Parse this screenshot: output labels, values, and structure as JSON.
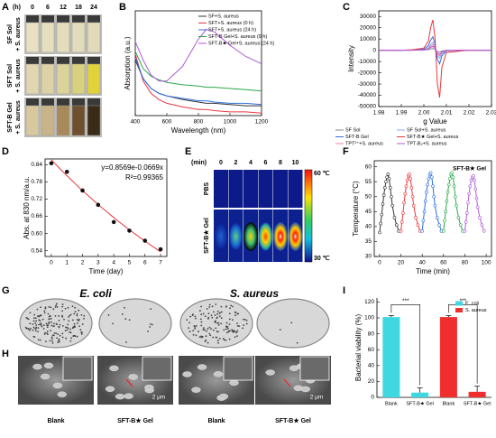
{
  "panel_labels": [
    "A",
    "B",
    "C",
    "D",
    "E",
    "F",
    "G",
    "H",
    "I"
  ],
  "panel_a": {
    "time_unit": "(h)",
    "times": [
      0,
      6,
      12,
      18,
      24
    ],
    "rows": [
      [
        "SF Sol",
        "+ S. aureus"
      ],
      [
        "SFT Sol",
        "+ S. aureus"
      ],
      [
        "SFT-B Gel",
        "+ S. aureus"
      ]
    ]
  },
  "panel_e": {
    "time_unit": "(min)",
    "times": [
      0,
      2,
      4,
      6,
      8,
      10
    ],
    "rows": [
      "PBS",
      "SFT-B★ Gel"
    ],
    "colorbar": [
      "60 ℃",
      "30 ℃"
    ]
  },
  "panel_g": {
    "columns": [
      "E. coli",
      "S. aureus"
    ]
  },
  "panel_h": {
    "labels": [
      "Blank",
      "SFT-B★ Gel",
      "Blank",
      "SFT-B★ Gel"
    ],
    "scale_bars": [
      "2 μm",
      "2 μm"
    ]
  },
  "chart_data": [
    {
      "type": "line",
      "xlabel": "Wavelength (nm)",
      "ylabel": "Absorption (a.u.)",
      "xlim": [
        400,
        1200
      ],
      "xticks": [
        400,
        600,
        800,
        1000,
        1200
      ],
      "ylim": [
        0,
        0.85
      ],
      "legend": "upper right",
      "x": [
        400,
        450,
        500,
        550,
        600,
        700,
        800,
        850,
        900,
        1000,
        1100,
        1200
      ],
      "series": [
        {
          "name": "SF+S. aureus",
          "color": "#333333",
          "values": [
            0.45,
            0.3,
            0.22,
            0.18,
            0.16,
            0.13,
            0.11,
            0.1,
            0.1,
            0.09,
            0.08,
            0.08
          ]
        },
        {
          "name": "SFT+S. aureus (0 h)",
          "color": "#e8383d",
          "values": [
            0.5,
            0.28,
            0.18,
            0.13,
            0.1,
            0.07,
            0.05,
            0.05,
            0.04,
            0.03,
            0.03,
            0.02
          ]
        },
        {
          "name": "SFT+S. aureus (24 h)",
          "color": "#2f6fe0",
          "values": [
            0.47,
            0.3,
            0.22,
            0.18,
            0.16,
            0.14,
            0.12,
            0.12,
            0.11,
            0.1,
            0.1,
            0.09
          ]
        },
        {
          "name": "SFT-B Gel+S. aureus (0 h)",
          "color": "#2aa84a",
          "values": [
            0.52,
            0.38,
            0.32,
            0.29,
            0.27,
            0.25,
            0.24,
            0.23,
            0.23,
            0.22,
            0.21,
            0.2
          ]
        },
        {
          "name": "SFT-B★ Gel+S. aureus (24 h)",
          "color": "#b05ad6",
          "values": [
            0.6,
            0.45,
            0.33,
            0.28,
            0.28,
            0.4,
            0.62,
            0.7,
            0.68,
            0.57,
            0.48,
            0.42
          ]
        }
      ]
    },
    {
      "type": "line",
      "xlabel": "g Value",
      "ylabel": "Intensity",
      "xlim": [
        1.98,
        2.03
      ],
      "xticks": [
        1.98,
        1.99,
        {
          "value": 2,
          "label": "2.00"
        },
        2.01,
        2.02,
        2.03
      ],
      "ylim": [
        -50000,
        35000
      ],
      "yticks": [
        -50000,
        -40000,
        -30000,
        -20000,
        -10000,
        0,
        10000,
        20000,
        30000
      ],
      "legend": "lower center",
      "x": [
        1.98,
        1.99,
        1.995,
        2.0,
        2.002,
        2.003,
        2.004,
        2.005,
        2.006,
        2.007,
        2.008,
        2.01,
        2.02,
        2.03
      ],
      "series": [
        {
          "name": "SF Sol",
          "color": "#888888",
          "values": [
            0,
            0,
            50,
            200,
            600,
            1200,
            1500,
            600,
            -1200,
            -1600,
            -700,
            -100,
            0,
            0
          ]
        },
        {
          "name": "SF Sol+S. aureus",
          "color": "#7fb2f0",
          "values": [
            0,
            0,
            100,
            500,
            2000,
            5000,
            7000,
            3000,
            -5000,
            -7000,
            -3000,
            -300,
            0,
            0
          ]
        },
        {
          "name": "SFT-B Gel",
          "color": "#2f6fe0",
          "values": [
            0,
            0,
            200,
            1000,
            4000,
            9000,
            12000,
            5000,
            -8000,
            -12000,
            -5000,
            -500,
            0,
            0
          ]
        },
        {
          "name": "SFT-B★ Gel+S. aureus",
          "color": "#e8383d",
          "values": [
            0,
            0,
            500,
            2000,
            8000,
            20000,
            27000,
            10000,
            -30000,
            -42000,
            -15000,
            -2000,
            0,
            0
          ]
        },
        {
          "name": "TPT²⁺+S. aureus",
          "color": "#f07fb0",
          "values": [
            0,
            0,
            80,
            400,
            1500,
            3500,
            5000,
            2000,
            -3500,
            -5000,
            -2000,
            -200,
            0,
            0
          ]
        },
        {
          "name": "TPT-B₂+S. aureus",
          "color": "#b05ad6",
          "values": [
            0,
            0,
            60,
            300,
            1000,
            2500,
            3500,
            1500,
            -2500,
            -3500,
            -1500,
            -150,
            0,
            0
          ]
        }
      ]
    },
    {
      "type": "scatter",
      "xlabel": "Time (day)",
      "ylabel": "Abs. at 830 nm/a.u.",
      "xlim": [
        -0.4,
        7.4
      ],
      "xticks": [
        0,
        1,
        2,
        3,
        4,
        5,
        6,
        7
      ],
      "ylim": [
        0.52,
        0.86
      ],
      "yticks": [
        0.54,
        {
          "value": 0.6,
          "label": "0.60"
        },
        0.66,
        0.72,
        0.78,
        0.84
      ],
      "x": [
        0,
        1,
        2,
        3,
        4,
        5,
        6,
        7
      ],
      "values": [
        0.845,
        0.815,
        0.75,
        0.7,
        0.64,
        0.61,
        0.575,
        0.545
      ],
      "color": "#111111",
      "fit": {
        "a": 0.8569,
        "b": -0.0669,
        "color": "#e8383d"
      },
      "annotations": [
        "y=0.8569e-0.0669x",
        "R²=0.99365"
      ]
    },
    {
      "type": "line",
      "title": "SFT-B★ Gel",
      "xlabel": "Time (min)",
      "ylabel": "Temperature (°C)",
      "xlim": [
        -5,
        105
      ],
      "xticks": [
        0,
        20,
        40,
        60,
        80,
        100
      ],
      "ylim": [
        30,
        62
      ],
      "yticks": [
        30,
        35,
        40,
        45,
        50,
        55,
        60
      ],
      "markers": true,
      "series": [
        {
          "color": "#333333",
          "x": [
            0,
            1,
            2,
            3,
            4,
            5,
            6,
            7,
            8,
            9,
            10,
            11,
            12,
            14,
            16,
            18
          ],
          "values": [
            38,
            41,
            44,
            47.5,
            50.5,
            53,
            55,
            56.5,
            57.5,
            56,
            53,
            50,
            47,
            43,
            40.5,
            38.5
          ]
        },
        {
          "color": "#e8383d",
          "x": [
            20,
            21,
            22,
            23,
            24,
            25,
            26,
            27,
            28,
            29,
            30,
            31,
            32,
            34,
            36,
            38
          ],
          "values": [
            38.5,
            41.5,
            44.5,
            48,
            51,
            53.5,
            55.5,
            57,
            57.5,
            56,
            53,
            50,
            47,
            43,
            40.5,
            38.5
          ]
        },
        {
          "color": "#2f6fe0",
          "x": [
            40,
            41,
            42,
            43,
            44,
            45,
            46,
            47,
            48,
            49,
            50,
            51,
            52,
            54,
            56,
            58
          ],
          "values": [
            38.5,
            42,
            45,
            48.5,
            51.5,
            54,
            56,
            57.5,
            58,
            56.5,
            53.5,
            50,
            47,
            43,
            40.5,
            38.5
          ]
        },
        {
          "color": "#2aa84a",
          "x": [
            60,
            61,
            62,
            63,
            64,
            65,
            66,
            67,
            68,
            69,
            70,
            71,
            72,
            74,
            76,
            78
          ],
          "values": [
            38.5,
            42,
            45,
            48.5,
            51.5,
            54,
            56,
            57.5,
            58,
            56.5,
            53.5,
            50,
            47,
            43,
            40.5,
            38.5
          ]
        },
        {
          "color": "#b05ad6",
          "x": [
            80,
            81,
            82,
            83,
            84,
            85,
            86,
            87,
            88,
            89,
            90,
            91,
            92,
            94,
            96,
            98
          ],
          "values": [
            38.5,
            41.5,
            44.5,
            48,
            51,
            53.5,
            55.5,
            56.5,
            57,
            55.5,
            52.5,
            49.5,
            46.5,
            43,
            40.5,
            38.5
          ]
        }
      ]
    },
    {
      "type": "bar",
      "ylabel": "Bacterial viability (%)",
      "categories": [
        "Blank",
        "SFT-B★ Gel",
        "Blank",
        "SFT-B★ Gel"
      ],
      "ylim": [
        0,
        125
      ],
      "yticks": [
        0,
        20,
        40,
        60,
        80,
        100,
        120
      ],
      "legend": "upper right",
      "series": [
        {
          "name": "E. coli",
          "color": "#3fd8e0",
          "values": [
            101,
            6,
            null,
            null
          ],
          "errors": [
            2,
            6,
            null,
            null
          ]
        },
        {
          "name": "S. aureus",
          "color": "#f02e2e",
          "values": [
            null,
            null,
            101,
            7
          ],
          "errors": [
            null,
            null,
            2,
            7
          ]
        }
      ],
      "annotations": [
        "***",
        "***"
      ]
    }
  ]
}
